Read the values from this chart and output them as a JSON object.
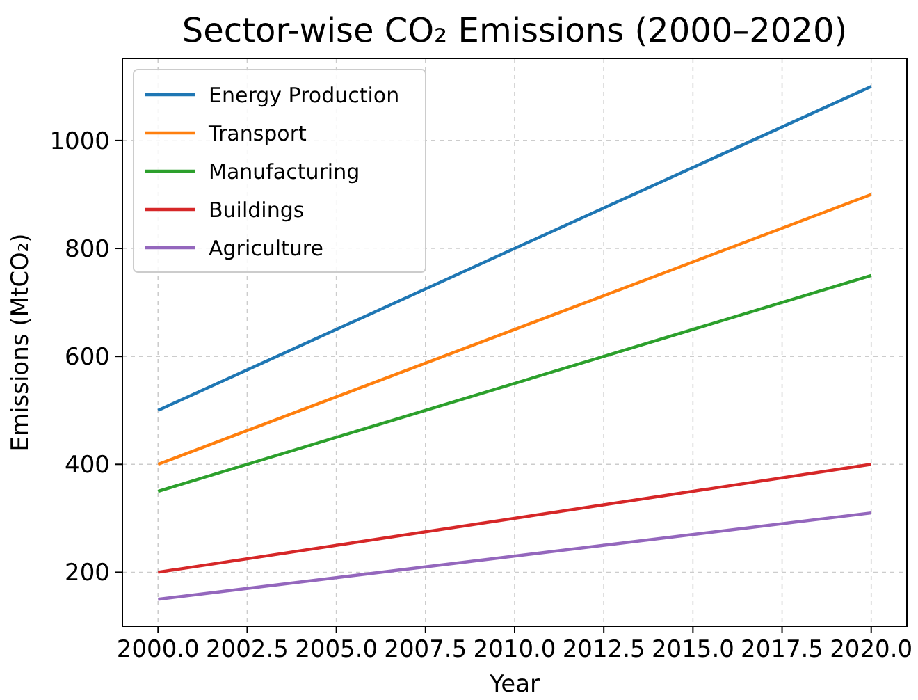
{
  "chart_data": {
    "type": "line",
    "title": "Sector-wise CO₂ Emissions (2000–2020)",
    "xlabel": "Year",
    "ylabel": "Emissions (MtCO₂)",
    "x": [
      2000,
      2020
    ],
    "series": [
      {
        "name": "Energy Production",
        "color": "#1f77b4",
        "values": [
          500,
          1100
        ]
      },
      {
        "name": "Transport",
        "color": "#ff7f0e",
        "values": [
          400,
          900
        ]
      },
      {
        "name": "Manufacturing",
        "color": "#2ca02c",
        "values": [
          350,
          750
        ]
      },
      {
        "name": "Buildings",
        "color": "#d62728",
        "values": [
          200,
          400
        ]
      },
      {
        "name": "Agriculture",
        "color": "#9467bd",
        "values": [
          150,
          310
        ]
      }
    ],
    "xlim": [
      1999,
      2021
    ],
    "xticks": [
      {
        "value": 2000,
        "label": "2000.0"
      },
      {
        "value": 2002.5,
        "label": "2002.5"
      },
      {
        "value": 2005,
        "label": "2005.0"
      },
      {
        "value": 2007.5,
        "label": "2007.5"
      },
      {
        "value": 2010,
        "label": "2010.0"
      },
      {
        "value": 2012.5,
        "label": "2012.5"
      },
      {
        "value": 2015,
        "label": "2015.0"
      },
      {
        "value": 2017.5,
        "label": "2017.5"
      },
      {
        "value": 2020,
        "label": "2020.0"
      }
    ],
    "ylim": [
      100,
      1152
    ],
    "yticks": [
      200,
      400,
      600,
      800,
      1000
    ],
    "grid": true,
    "legend": "top left",
    "line_style": "solid",
    "marker": "none"
  }
}
